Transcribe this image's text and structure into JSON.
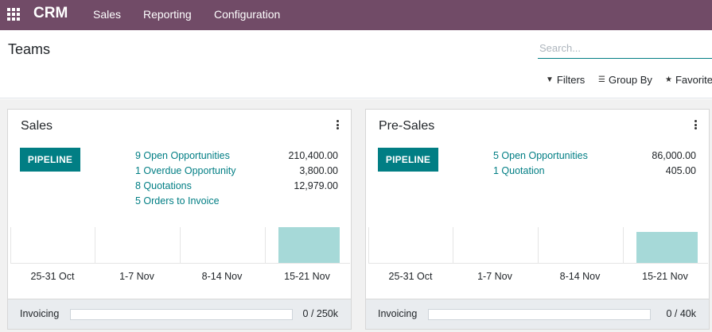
{
  "app": {
    "brand": "CRM",
    "menu": [
      "Sales",
      "Reporting",
      "Configuration"
    ]
  },
  "control_panel": {
    "title": "Teams",
    "search_placeholder": "Search...",
    "filters_label": "Filters",
    "group_by_label": "Group By",
    "favorites_label": "Favorite"
  },
  "cards": [
    {
      "title": "Sales",
      "pipeline_label": "PIPELINE",
      "stats": [
        {
          "label": "9 Open Opportunities",
          "value": "210,400.00"
        },
        {
          "label": "1 Overdue Opportunity",
          "value": "3,800.00"
        },
        {
          "label": "8 Quotations",
          "value": "12,979.00"
        },
        {
          "label": "5 Orders to Invoice",
          "value": ""
        }
      ],
      "graph": {
        "categories": [
          "25-31 Oct",
          "1-7 Nov",
          "8-14 Nov",
          "15-21 Nov"
        ],
        "values": [
          0,
          0,
          0,
          1
        ],
        "max": 1
      },
      "footer": {
        "label": "Invoicing",
        "progress": 0,
        "progress_text": "0 / 250k"
      }
    },
    {
      "title": "Pre-Sales",
      "pipeline_label": "PIPELINE",
      "stats": [
        {
          "label": "5 Open Opportunities",
          "value": "86,000.00"
        },
        {
          "label": "1 Quotation",
          "value": "405.00"
        }
      ],
      "graph": {
        "categories": [
          "25-31 Oct",
          "1-7 Nov",
          "8-14 Nov",
          "15-21 Nov"
        ],
        "values": [
          0,
          0,
          0,
          0.86
        ],
        "max": 1
      },
      "footer": {
        "label": "Invoicing",
        "progress": 0,
        "progress_text": "0 / 40k"
      }
    }
  ],
  "colors": {
    "navbar": "#714b67",
    "accent": "#017e84",
    "bar": "#a6d9d8"
  }
}
